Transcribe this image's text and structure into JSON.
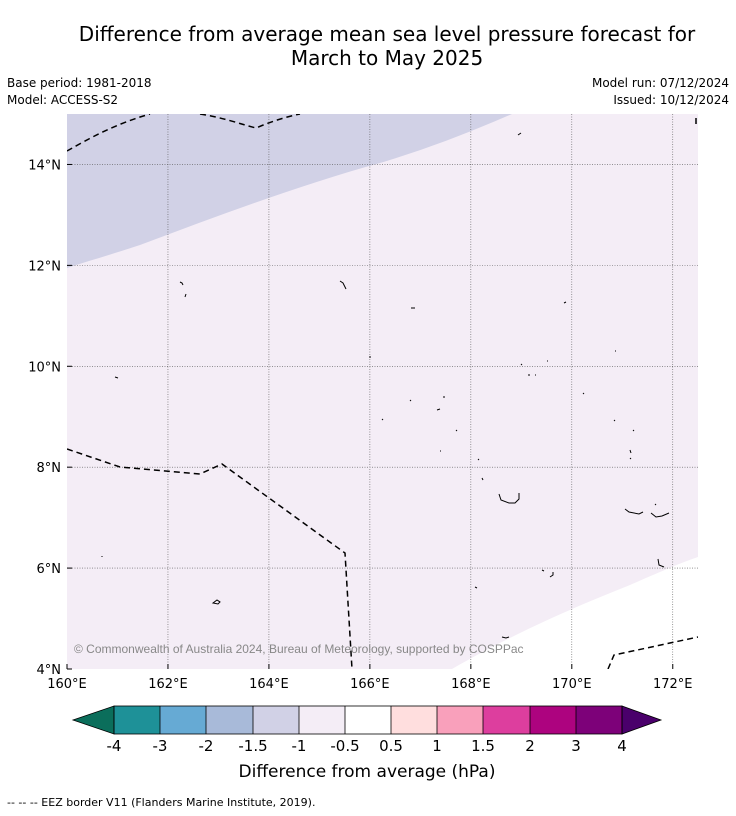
{
  "header": {
    "title_line1": "Difference from average mean sea level pressure forecast for",
    "title_line2": "March to May 2025",
    "base_period": "Base period: 1981-2018",
    "model": "Model: ACCESS-S2",
    "model_run": "Model run: 07/12/2024",
    "issued": "Issued: 10/12/2024"
  },
  "map": {
    "lon_range": [
      160,
      172.5
    ],
    "lat_range": [
      4,
      15
    ],
    "lon_ticks": [
      160,
      162,
      164,
      166,
      168,
      170,
      172
    ],
    "lon_labels": [
      "160°E",
      "162°E",
      "164°E",
      "166°E",
      "168°E",
      "170°E",
      "172°E"
    ],
    "lat_ticks": [
      4,
      6,
      8,
      10,
      12,
      14
    ],
    "lat_labels": [
      "4°N",
      "6°N",
      "8°N",
      "10°N",
      "12°N",
      "14°N"
    ],
    "grid": true,
    "copyright": "© Commonwealth of Australia 2024, Bureau of Meteorology, supported by COSPPac",
    "fills": {
      "upper_band": "#d1d1e6",
      "main": "#f4edf6",
      "lower_right": "#ffffff"
    }
  },
  "colorbar": {
    "colors": [
      "#0b6e5b",
      "#1e9198",
      "#66aad4",
      "#a8bad9",
      "#d1d1e6",
      "#f4edf6",
      "#ffffff",
      "#ffdede",
      "#f9a0bb",
      "#dd3e9e",
      "#ad037f",
      "#7d0179",
      "#4a006b"
    ],
    "tick_labels": [
      "-4",
      "-3",
      "-2",
      "-1.5",
      "-1",
      "-0.5",
      "0.5",
      "1",
      "1.5",
      "2",
      "3",
      "4"
    ],
    "label": "Difference from average (hPa)"
  },
  "footnote": "--  --  -- EEZ border V11 (Flanders Marine Institute, 2019)."
}
